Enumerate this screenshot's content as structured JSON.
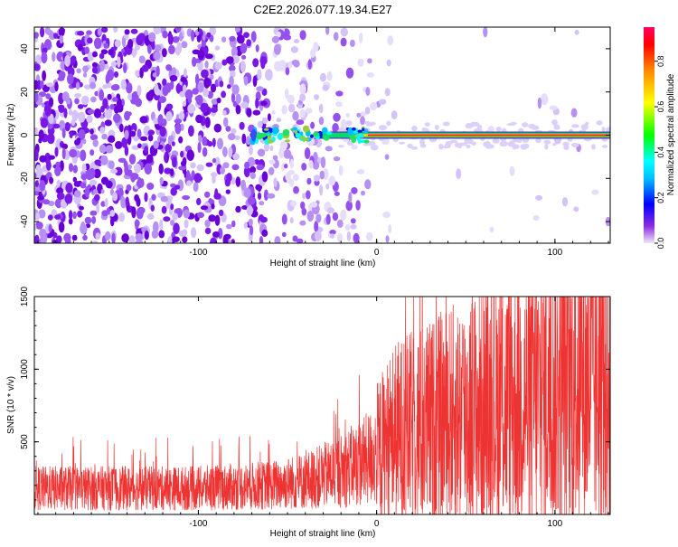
{
  "title": "C2E2.2026.077.19.34.E27",
  "chart_data": [
    {
      "type": "heatmap",
      "xlabel": "Height of straight line (km)",
      "ylabel": "Frequency (Hz)",
      "xlim": [
        -192,
        131
      ],
      "ylim": [
        -50,
        50
      ],
      "xticks": [
        -100,
        0,
        100
      ],
      "xtick_labels": [
        "-100",
        "0",
        "100"
      ],
      "yticks": [
        -40,
        -20,
        0,
        20,
        40
      ],
      "ytick_labels": [
        "-40",
        "-20",
        "0",
        "20",
        "40"
      ],
      "signal": {
        "frequency_hz": 0,
        "onset_km": -70,
        "description_color": "red"
      },
      "colorbar": {
        "label": "Normalized spectral amplitude",
        "range": [
          0,
          0.95
        ],
        "ticks": [
          0,
          0.2,
          0.4,
          0.6,
          0.8
        ],
        "tick_labels": [
          "0.0",
          "0.2",
          "0.4",
          "0.6",
          "0.8"
        ]
      }
    },
    {
      "type": "line",
      "xlabel": "Height of straight line (km)",
      "ylabel": "SNR (10 * v/v)",
      "xlim": [
        -192,
        131
      ],
      "ylim": [
        0,
        1500
      ],
      "xticks": [
        -100,
        0,
        100
      ],
      "xtick_labels": [
        "-100",
        "0",
        "100"
      ],
      "yticks": [
        500,
        1000,
        1500
      ],
      "ytick_labels": [
        "500",
        "1000",
        "1500"
      ],
      "color": "#ee3333",
      "series": [
        {
          "name": "SNR",
          "x": [
            -192,
            -150,
            -100,
            -60,
            -40,
            -20,
            -5,
            0,
            10,
            30,
            50,
            70,
            90,
            110,
            131
          ],
          "y": [
            180,
            180,
            180,
            200,
            230,
            300,
            380,
            420,
            550,
            620,
            700,
            760,
            820,
            880,
            920
          ]
        }
      ]
    }
  ]
}
